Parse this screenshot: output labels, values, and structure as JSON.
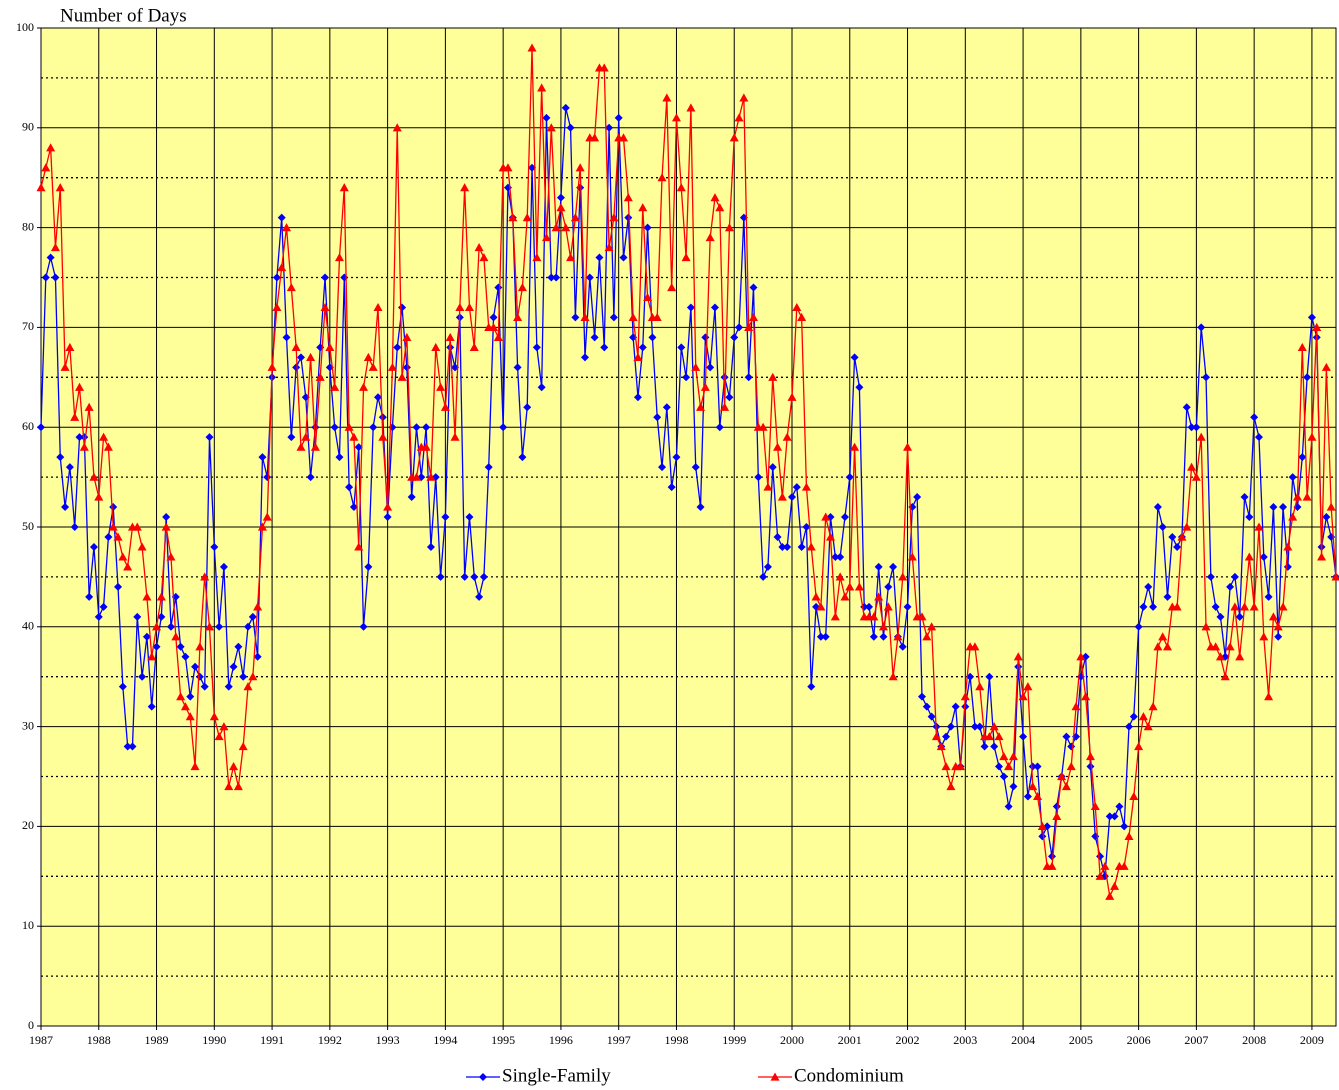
{
  "chart_data": {
    "type": "line",
    "y_label": "Number of Days",
    "categories": [
      "1987",
      null,
      null,
      null,
      null,
      null,
      null,
      null,
      null,
      null,
      null,
      null,
      "1988",
      null,
      null,
      null,
      null,
      null,
      null,
      null,
      null,
      null,
      null,
      null,
      "1989",
      null,
      null,
      null,
      null,
      null,
      null,
      null,
      null,
      null,
      null,
      null,
      "1990",
      null,
      null,
      null,
      null,
      null,
      null,
      null,
      null,
      null,
      null,
      null,
      "1991",
      null,
      null,
      null,
      null,
      null,
      null,
      null,
      null,
      null,
      null,
      null,
      "1992",
      null,
      null,
      null,
      null,
      null,
      null,
      null,
      null,
      null,
      null,
      null,
      "1993",
      null,
      null,
      null,
      null,
      null,
      null,
      null,
      null,
      null,
      null,
      null,
      "1994",
      null,
      null,
      null,
      null,
      null,
      null,
      null,
      null,
      null,
      null,
      null,
      "1995",
      null,
      null,
      null,
      null,
      null,
      null,
      null,
      null,
      null,
      null,
      null,
      "1996",
      null,
      null,
      null,
      null,
      null,
      null,
      null,
      null,
      null,
      null,
      null,
      "1997",
      null,
      null,
      null,
      null,
      null,
      null,
      null,
      null,
      null,
      null,
      null,
      "1998",
      null,
      null,
      null,
      null,
      null,
      null,
      null,
      null,
      null,
      null,
      null,
      "1999",
      null,
      null,
      null,
      null,
      null,
      null,
      null,
      null,
      null,
      null,
      null,
      "2000",
      null,
      null,
      null,
      null,
      null,
      null,
      null,
      null,
      null,
      null,
      null,
      "2001",
      null,
      null,
      null,
      null,
      null,
      null,
      null,
      null,
      null,
      null,
      null,
      "2002",
      null,
      null,
      null,
      null,
      null,
      null,
      null,
      null,
      null,
      null,
      null,
      "2003",
      null,
      null,
      null,
      null,
      null,
      null,
      null,
      null,
      null,
      null,
      null,
      "2004",
      null,
      null,
      null,
      null,
      null,
      null,
      null,
      null,
      null,
      null,
      null,
      "2005",
      null,
      null,
      null,
      null,
      null,
      null,
      null,
      null,
      null,
      null,
      null,
      "2006",
      null,
      null,
      null,
      null,
      null,
      null,
      null,
      null,
      null,
      null,
      null,
      "2007",
      null,
      null,
      null,
      null,
      null,
      null,
      null,
      null,
      null,
      null,
      null,
      "2008",
      null,
      null,
      null,
      null,
      null,
      null,
      null,
      null,
      null,
      null,
      null,
      "2009",
      null,
      null,
      null,
      null,
      null
    ],
    "series": [
      {
        "name": "Single-Family",
        "color": "#0000ff",
        "marker": "diamond",
        "values": [
          60,
          75,
          77,
          75,
          57,
          52,
          56,
          50,
          59,
          59,
          43,
          48,
          41,
          42,
          49,
          52,
          44,
          34,
          28,
          28,
          41,
          35,
          39,
          32,
          38,
          41,
          51,
          40,
          43,
          38,
          37,
          33,
          36,
          35,
          34,
          59,
          48,
          40,
          46,
          34,
          36,
          38,
          35,
          40,
          41,
          37,
          57,
          55,
          65,
          75,
          81,
          69,
          59,
          66,
          67,
          63,
          55,
          60,
          68,
          75,
          66,
          60,
          57,
          75,
          54,
          52,
          58,
          40,
          46,
          60,
          63,
          61,
          51,
          60,
          68,
          72,
          66,
          53,
          60,
          55,
          60,
          48,
          55,
          45,
          51,
          68,
          66,
          71,
          45,
          51,
          45,
          43,
          45,
          56,
          71,
          74,
          60,
          84,
          81,
          66,
          57,
          62,
          86,
          68,
          64,
          91,
          75,
          75,
          83,
          92,
          90,
          71,
          84,
          67,
          75,
          69,
          77,
          68,
          90,
          71,
          91,
          77,
          81,
          69,
          63,
          68,
          80,
          69,
          61,
          56,
          62,
          54,
          57,
          68,
          65,
          72,
          56,
          52,
          69,
          66,
          72,
          60,
          65,
          63,
          69,
          70,
          81,
          65,
          74,
          55,
          45,
          46,
          56,
          49,
          48,
          48,
          53,
          54,
          48,
          50,
          34,
          42,
          39,
          39,
          51,
          47,
          47,
          51,
          55,
          67,
          64,
          42,
          42,
          39,
          46,
          39,
          44,
          46,
          39,
          38,
          42,
          52,
          53,
          33,
          32,
          31,
          30,
          28,
          29,
          30,
          32,
          26,
          32,
          35,
          30,
          30,
          28,
          35,
          28,
          26,
          25,
          22,
          24,
          36,
          29,
          23,
          26,
          26,
          19,
          20,
          17,
          22,
          25,
          29,
          28,
          29,
          35,
          37,
          26,
          19,
          17,
          15,
          21,
          21,
          22,
          20,
          30,
          31,
          40,
          42,
          44,
          42,
          52,
          50,
          43,
          49,
          48,
          49,
          62,
          60,
          60,
          70,
          65,
          45,
          42,
          41,
          37,
          44,
          45,
          41,
          53,
          51,
          61,
          59,
          47,
          43,
          52,
          39,
          52,
          46,
          55,
          52,
          57,
          65,
          71,
          69,
          48,
          51,
          49,
          45
        ]
      },
      {
        "name": "Condominium",
        "color": "#ff0000",
        "marker": "triangle",
        "values": [
          84,
          86,
          88,
          78,
          84,
          66,
          68,
          61,
          64,
          58,
          62,
          55,
          53,
          59,
          58,
          50,
          49,
          47,
          46,
          50,
          50,
          48,
          43,
          37,
          40,
          43,
          50,
          47,
          39,
          33,
          32,
          31,
          26,
          38,
          45,
          40,
          31,
          29,
          30,
          24,
          26,
          24,
          28,
          34,
          35,
          42,
          50,
          51,
          66,
          72,
          76,
          80,
          74,
          68,
          58,
          59,
          67,
          58,
          65,
          72,
          68,
          64,
          77,
          84,
          60,
          59,
          48,
          64,
          67,
          66,
          72,
          59,
          52,
          66,
          90,
          65,
          69,
          55,
          55,
          58,
          58,
          55,
          68,
          64,
          62,
          69,
          59,
          72,
          84,
          72,
          68,
          78,
          77,
          70,
          70,
          69,
          86,
          86,
          81,
          71,
          74,
          81,
          98,
          77,
          94,
          79,
          90,
          80,
          82,
          80,
          77,
          81,
          86,
          71,
          89,
          89,
          96,
          96,
          78,
          81,
          89,
          89,
          83,
          71,
          67,
          82,
          73,
          71,
          71,
          85,
          93,
          74,
          91,
          84,
          77,
          92,
          66,
          62,
          64,
          79,
          83,
          82,
          62,
          80,
          89,
          91,
          93,
          70,
          71,
          60,
          60,
          54,
          65,
          58,
          53,
          59,
          63,
          72,
          71,
          54,
          48,
          43,
          42,
          51,
          49,
          41,
          45,
          43,
          44,
          58,
          44,
          41,
          41,
          41,
          43,
          40,
          42,
          35,
          39,
          45,
          58,
          47,
          41,
          41,
          39,
          40,
          29,
          28,
          26,
          24,
          26,
          26,
          33,
          38,
          38,
          34,
          29,
          29,
          30,
          29,
          27,
          26,
          27,
          37,
          33,
          34,
          24,
          23,
          20,
          16,
          16,
          21,
          25,
          24,
          26,
          32,
          37,
          33,
          27,
          22,
          15,
          16,
          13,
          14,
          16,
          16,
          19,
          23,
          28,
          31,
          30,
          32,
          38,
          39,
          38,
          42,
          42,
          49,
          50,
          56,
          55,
          59,
          40,
          38,
          38,
          37,
          35,
          38,
          42,
          37,
          42,
          47,
          42,
          50,
          39,
          33,
          41,
          40,
          42,
          48,
          51,
          53,
          68,
          53,
          59,
          70,
          47,
          66,
          52,
          45
        ]
      }
    ],
    "ylim": [
      0,
      100
    ],
    "yticks": [
      0,
      10,
      20,
      30,
      40,
      50,
      60,
      70,
      80,
      90,
      100
    ],
    "y_minor_ticks": [
      5,
      15,
      25,
      35,
      45,
      55,
      65,
      75,
      85,
      95
    ],
    "grid": true,
    "background": "#ffff99",
    "legend": "bottom"
  }
}
